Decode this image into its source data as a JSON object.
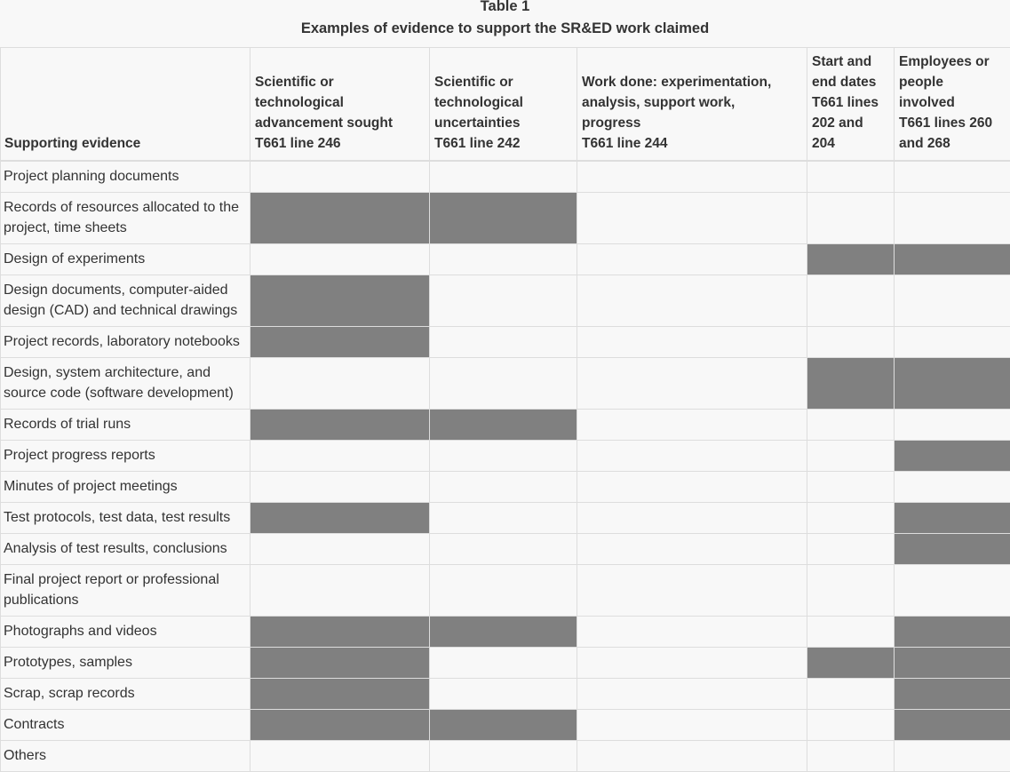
{
  "caption": {
    "table_number": "Table 1",
    "title": "Examples of evidence to support the SR&ED work claimed"
  },
  "colors": {
    "filled": "#808080",
    "empty": "#f8f8f8",
    "border": "#dddddd"
  },
  "headers": [
    "Supporting evidence",
    "Scientific or technological advancement sought T661 line 246",
    "Scientific or technological uncertainties T661 line 242",
    "Work done: experimentation, analysis, support work, progress T661 line 244",
    "Start and end dates T661 lines 202 and 204",
    "Employees or people involved T661 lines 260 and 268"
  ],
  "rows": [
    {
      "label": "Project planning documents",
      "marks": [
        false,
        false,
        false,
        false,
        false
      ]
    },
    {
      "label": "Records of resources allocated to the project, time sheets",
      "marks": [
        true,
        true,
        false,
        false,
        false
      ]
    },
    {
      "label": "Design of experiments",
      "marks": [
        false,
        false,
        false,
        true,
        true
      ]
    },
    {
      "label": "Design documents, computer-aided design (CAD) and technical drawings",
      "marks": [
        true,
        false,
        false,
        false,
        false
      ]
    },
    {
      "label": "Project records, laboratory notebooks",
      "marks": [
        true,
        false,
        false,
        false,
        false
      ]
    },
    {
      "label": "Design, system architecture, and source code (software development)",
      "marks": [
        false,
        false,
        false,
        true,
        true
      ]
    },
    {
      "label": "Records of trial runs",
      "marks": [
        true,
        true,
        false,
        false,
        false
      ]
    },
    {
      "label": "Project progress reports",
      "marks": [
        false,
        false,
        false,
        false,
        true
      ]
    },
    {
      "label": "Minutes of project meetings",
      "marks": [
        false,
        false,
        false,
        false,
        false
      ]
    },
    {
      "label": "Test protocols, test data, test results",
      "marks": [
        true,
        false,
        false,
        false,
        true
      ]
    },
    {
      "label": "Analysis of test results, conclusions",
      "marks": [
        false,
        false,
        false,
        false,
        true
      ]
    },
    {
      "label": "Final project report or professional publications",
      "marks": [
        false,
        false,
        false,
        false,
        false
      ]
    },
    {
      "label": "Photographs and videos",
      "marks": [
        true,
        true,
        false,
        false,
        true
      ]
    },
    {
      "label": "Prototypes, samples",
      "marks": [
        true,
        false,
        false,
        true,
        true
      ]
    },
    {
      "label": "Scrap, scrap records",
      "marks": [
        true,
        false,
        false,
        false,
        true
      ]
    },
    {
      "label": "Contracts",
      "marks": [
        true,
        true,
        false,
        false,
        true
      ]
    },
    {
      "label": "Others",
      "marks": [
        false,
        false,
        false,
        false,
        false
      ]
    }
  ]
}
